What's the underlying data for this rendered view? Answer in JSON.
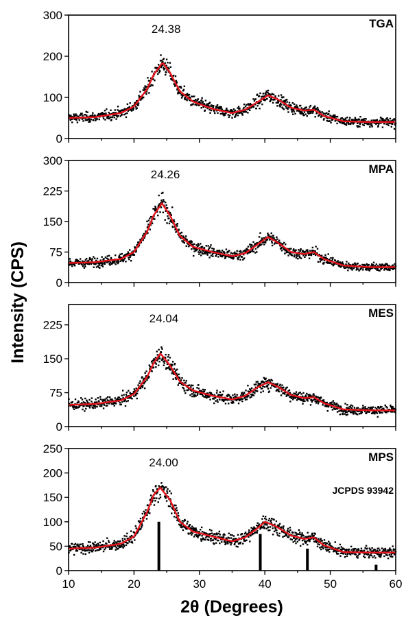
{
  "chart_data": [
    {
      "type": "scatter",
      "panel": "TGA",
      "peak_label": "24.38",
      "xlim": [
        10,
        60
      ],
      "ylim": [
        0,
        300
      ],
      "yticks": [
        "0",
        "100",
        "200",
        "300"
      ],
      "fit_color": "#e8141c",
      "fit_curve": {
        "x": [
          10,
          14,
          18,
          20,
          22,
          23,
          24.38,
          25.5,
          27,
          29,
          32,
          35,
          37,
          39,
          40.5,
          42,
          44,
          46,
          47.5,
          49,
          52,
          56,
          60
        ],
        "y": [
          50,
          52,
          62,
          78,
          120,
          155,
          185,
          160,
          115,
          90,
          72,
          62,
          70,
          90,
          105,
          95,
          75,
          68,
          70,
          55,
          42,
          40,
          40
        ]
      }
    },
    {
      "type": "scatter",
      "panel": "MPA",
      "peak_label": "24.26",
      "xlim": [
        10,
        60
      ],
      "ylim": [
        0,
        300
      ],
      "yticks": [
        "0",
        "75",
        "150",
        "225",
        "300"
      ],
      "fit_color": "#e8141c",
      "fit_curve": {
        "x": [
          10,
          14,
          18,
          20,
          22,
          23,
          24.26,
          25.5,
          27,
          29,
          32,
          35,
          37,
          39,
          40.5,
          42,
          44,
          46,
          47.5,
          49,
          52,
          56,
          60
        ],
        "y": [
          48,
          50,
          58,
          75,
          125,
          165,
          195,
          165,
          115,
          88,
          75,
          65,
          72,
          95,
          112,
          98,
          75,
          70,
          75,
          58,
          42,
          38,
          38
        ]
      }
    },
    {
      "type": "scatter",
      "panel": "MES",
      "peak_label": "24.04",
      "xlim": [
        10,
        60
      ],
      "ylim": [
        0,
        270
      ],
      "yticks": [
        "0",
        "75",
        "150",
        "225"
      ],
      "fit_color": "#e8141c",
      "fit_curve": {
        "x": [
          10,
          14,
          18,
          20,
          22,
          23,
          24.04,
          25.5,
          27,
          29,
          32,
          35,
          37,
          39,
          40.5,
          42,
          44,
          46,
          47.5,
          49,
          52,
          56,
          60
        ],
        "y": [
          48,
          50,
          58,
          72,
          110,
          140,
          162,
          135,
          100,
          80,
          68,
          60,
          68,
          88,
          98,
          88,
          70,
          63,
          65,
          52,
          38,
          36,
          36
        ]
      }
    },
    {
      "type": "scatter",
      "panel": "MPS",
      "peak_label": "24.00",
      "reference_label": "JCPDS 93942",
      "xlim": [
        10,
        60
      ],
      "ylim": [
        0,
        250
      ],
      "yticks": [
        "0",
        "50",
        "100",
        "150",
        "200",
        "250"
      ],
      "xticks": [
        "10",
        "20",
        "30",
        "40",
        "50",
        "60"
      ],
      "fit_color": "#e8141c",
      "fit_curve": {
        "x": [
          10,
          14,
          18,
          20,
          22,
          23,
          24.0,
          25.5,
          27,
          29,
          32,
          35,
          37,
          39,
          40.0,
          41.5,
          44,
          46,
          47.5,
          49,
          52,
          56,
          60
        ],
        "y": [
          45,
          47,
          55,
          70,
          120,
          155,
          170,
          145,
          100,
          80,
          70,
          60,
          68,
          88,
          100,
          92,
          72,
          65,
          68,
          52,
          38,
          37,
          37
        ]
      },
      "reference_peaks": {
        "x": [
          23.8,
          39.3,
          46.5,
          57.0
        ],
        "y": [
          100,
          75,
          45,
          12
        ]
      }
    }
  ],
  "xlabel": "2θ (Degrees)",
  "ylabel": "Intensity (CPS)"
}
